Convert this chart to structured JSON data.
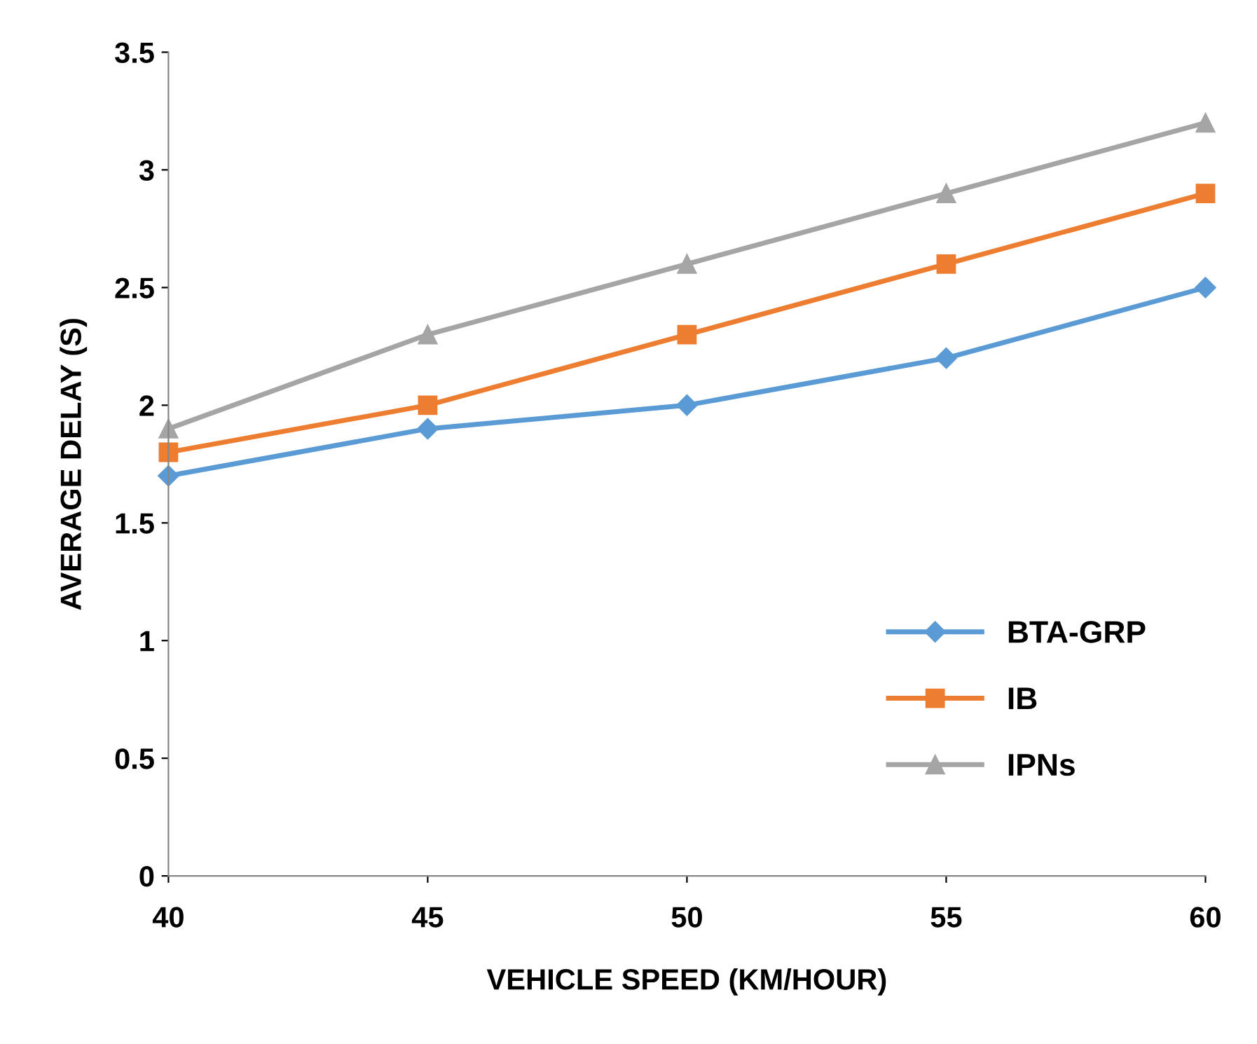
{
  "chart_data": {
    "type": "line",
    "xlabel": "VEHICLE SPEED (KM/HOUR)",
    "ylabel": "AVERAGE DELAY (S)",
    "x": [
      40,
      45,
      50,
      55,
      60
    ],
    "series": [
      {
        "name": "BTA-GRP",
        "color": "#5b9bd5",
        "marker": "diamond",
        "values": [
          1.7,
          1.9,
          2.0,
          2.2,
          2.5
        ]
      },
      {
        "name": "IB",
        "color": "#ed7d31",
        "marker": "square",
        "values": [
          1.8,
          2.0,
          2.3,
          2.6,
          2.9
        ]
      },
      {
        "name": "IPNs",
        "color": "#a5a5a5",
        "marker": "triangle",
        "values": [
          1.9,
          2.3,
          2.6,
          2.9,
          3.2
        ]
      }
    ],
    "xlim": [
      40,
      60
    ],
    "xticks": [
      40,
      45,
      50,
      55,
      60
    ],
    "ylim": [
      0,
      3.5
    ],
    "yticks": [
      0,
      {
        "value": 0.5,
        "label": "0.5"
      },
      1,
      {
        "value": 1.5,
        "label": "1.5"
      },
      2,
      {
        "value": 2.5,
        "label": "2.5"
      },
      3,
      {
        "value": 3.5,
        "label": "3.5"
      }
    ],
    "grid": false,
    "legend": "bottom right",
    "line_style": "solid"
  }
}
